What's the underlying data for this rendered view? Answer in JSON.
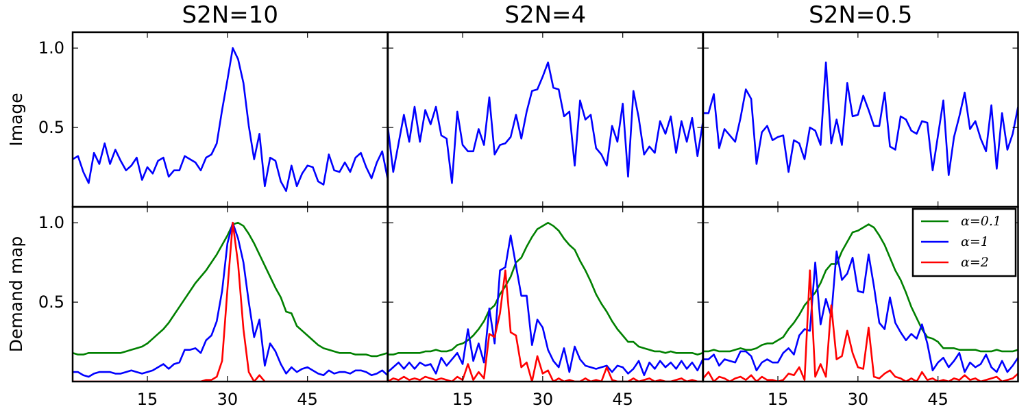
{
  "chart_data": {
    "type": "line",
    "columns": [
      "S2N=10",
      "S2N=4",
      "S2N=0.5"
    ],
    "rows": [
      "Image",
      "Demand map"
    ],
    "x_ticks": [
      15,
      30,
      45
    ],
    "y_ticks": [
      "1.0",
      "0.5"
    ],
    "xlim": [
      1,
      60
    ],
    "ylim": [
      0.0,
      1.1
    ],
    "colors": {
      "green": "#008000",
      "blue": "#0000ff",
      "red": "#ff0000"
    },
    "legend": {
      "location": "upper right of bottom-right panel",
      "entries": [
        {
          "label": "α=0.1",
          "color": "#008000"
        },
        {
          "label": "α=1",
          "color": "#0000ff"
        },
        {
          "label": "α=2",
          "color": "#ff0000"
        }
      ]
    },
    "panels": [
      {
        "column": "S2N=10",
        "row": "Image",
        "series": [
          {
            "color": "#0000ff",
            "y": [
              0.3,
              0.32,
              0.22,
              0.15,
              0.34,
              0.27,
              0.4,
              0.27,
              0.36,
              0.29,
              0.23,
              0.26,
              0.31,
              0.17,
              0.25,
              0.21,
              0.29,
              0.31,
              0.19,
              0.23,
              0.23,
              0.32,
              0.3,
              0.28,
              0.23,
              0.31,
              0.33,
              0.4,
              0.61,
              0.8,
              1.0,
              0.93,
              0.78,
              0.51,
              0.3,
              0.46,
              0.13,
              0.31,
              0.29,
              0.16,
              0.1,
              0.26,
              0.13,
              0.21,
              0.26,
              0.25,
              0.16,
              0.14,
              0.33,
              0.23,
              0.22,
              0.28,
              0.22,
              0.31,
              0.34,
              0.25,
              0.18,
              0.28,
              0.35,
              0.18
            ]
          }
        ]
      },
      {
        "column": "S2N=4",
        "row": "Image",
        "series": [
          {
            "color": "#0000ff",
            "y": [
              0.5,
              0.22,
              0.4,
              0.58,
              0.41,
              0.63,
              0.41,
              0.61,
              0.52,
              0.63,
              0.45,
              0.43,
              0.15,
              0.6,
              0.39,
              0.35,
              0.35,
              0.49,
              0.39,
              0.69,
              0.33,
              0.39,
              0.4,
              0.44,
              0.58,
              0.43,
              0.6,
              0.73,
              0.74,
              0.82,
              0.91,
              0.75,
              0.74,
              0.57,
              0.6,
              0.26,
              0.67,
              0.55,
              0.58,
              0.37,
              0.33,
              0.26,
              0.51,
              0.41,
              0.65,
              0.19,
              0.73,
              0.56,
              0.33,
              0.38,
              0.34,
              0.54,
              0.46,
              0.57,
              0.34,
              0.54,
              0.41,
              0.56,
              0.32,
              0.53
            ]
          }
        ]
      },
      {
        "column": "S2N=0.5",
        "row": "Image",
        "series": [
          {
            "color": "#0000ff",
            "y": [
              0.59,
              0.59,
              0.71,
              0.37,
              0.49,
              0.45,
              0.41,
              0.56,
              0.74,
              0.68,
              0.27,
              0.47,
              0.51,
              0.42,
              0.44,
              0.45,
              0.22,
              0.42,
              0.4,
              0.3,
              0.5,
              0.48,
              0.39,
              0.91,
              0.4,
              0.55,
              0.39,
              0.78,
              0.57,
              0.58,
              0.7,
              0.61,
              0.51,
              0.51,
              0.72,
              0.38,
              0.36,
              0.57,
              0.55,
              0.48,
              0.46,
              0.54,
              0.53,
              0.23,
              0.45,
              0.67,
              0.2,
              0.44,
              0.57,
              0.72,
              0.49,
              0.54,
              0.43,
              0.35,
              0.64,
              0.24,
              0.59,
              0.36,
              0.46,
              0.63
            ]
          }
        ]
      },
      {
        "column": "S2N=10",
        "row": "Demand map",
        "series": [
          {
            "color": "#008000",
            "y": [
              0.18,
              0.17,
              0.17,
              0.18,
              0.18,
              0.18,
              0.18,
              0.18,
              0.18,
              0.18,
              0.19,
              0.2,
              0.21,
              0.22,
              0.24,
              0.27,
              0.3,
              0.33,
              0.37,
              0.42,
              0.47,
              0.52,
              0.57,
              0.62,
              0.66,
              0.7,
              0.75,
              0.8,
              0.86,
              0.92,
              0.99,
              1.0,
              0.98,
              0.93,
              0.87,
              0.8,
              0.73,
              0.66,
              0.59,
              0.53,
              0.44,
              0.43,
              0.35,
              0.32,
              0.29,
              0.26,
              0.23,
              0.21,
              0.2,
              0.19,
              0.18,
              0.18,
              0.18,
              0.17,
              0.17,
              0.17,
              0.16,
              0.16,
              0.17,
              0.18
            ]
          },
          {
            "color": "#0000ff",
            "y": [
              0.06,
              0.06,
              0.04,
              0.03,
              0.05,
              0.06,
              0.06,
              0.06,
              0.05,
              0.05,
              0.06,
              0.07,
              0.06,
              0.05,
              0.06,
              0.07,
              0.09,
              0.11,
              0.08,
              0.11,
              0.12,
              0.2,
              0.2,
              0.21,
              0.18,
              0.26,
              0.29,
              0.38,
              0.57,
              0.87,
              1.0,
              0.9,
              0.75,
              0.5,
              0.28,
              0.39,
              0.1,
              0.24,
              0.19,
              0.11,
              0.05,
              0.09,
              0.06,
              0.08,
              0.09,
              0.07,
              0.05,
              0.04,
              0.07,
              0.05,
              0.06,
              0.06,
              0.05,
              0.07,
              0.07,
              0.06,
              0.04,
              0.05,
              0.07,
              0.04
            ]
          },
          {
            "color": "#ff0000",
            "y": [
              0.0,
              0.0,
              0.0,
              0.0,
              0.0,
              0.0,
              0.0,
              0.0,
              0.0,
              0.0,
              0.0,
              0.0,
              0.0,
              0.0,
              0.0,
              0.0,
              0.0,
              0.0,
              0.0,
              0.0,
              0.0,
              0.0,
              0.0,
              0.0,
              0.0,
              0.01,
              0.01,
              0.03,
              0.13,
              0.58,
              1.0,
              0.74,
              0.33,
              0.06,
              0.0,
              0.04,
              0.0,
              0.0,
              0.0,
              0.0,
              0.0,
              0.0,
              0.0,
              0.0,
              0.0,
              0.0,
              0.0,
              0.0,
              0.0,
              0.0,
              0.0,
              0.0,
              0.0,
              0.0,
              0.0,
              0.0,
              0.0,
              0.0,
              0.0,
              0.0
            ]
          }
        ]
      },
      {
        "column": "S2N=4",
        "row": "Demand map",
        "series": [
          {
            "color": "#008000",
            "y": [
              0.17,
              0.17,
              0.18,
              0.18,
              0.18,
              0.18,
              0.18,
              0.19,
              0.19,
              0.2,
              0.19,
              0.19,
              0.2,
              0.23,
              0.24,
              0.26,
              0.29,
              0.33,
              0.38,
              0.45,
              0.48,
              0.55,
              0.6,
              0.66,
              0.75,
              0.78,
              0.85,
              0.91,
              0.96,
              0.98,
              1.0,
              0.98,
              0.95,
              0.9,
              0.86,
              0.83,
              0.76,
              0.7,
              0.63,
              0.55,
              0.49,
              0.44,
              0.38,
              0.33,
              0.29,
              0.25,
              0.25,
              0.22,
              0.21,
              0.2,
              0.19,
              0.19,
              0.18,
              0.19,
              0.18,
              0.18,
              0.18,
              0.18,
              0.17,
              0.18
            ]
          },
          {
            "color": "#0000ff",
            "y": [
              0.06,
              0.09,
              0.12,
              0.08,
              0.12,
              0.08,
              0.12,
              0.1,
              0.11,
              0.05,
              0.15,
              0.1,
              0.14,
              0.18,
              0.11,
              0.33,
              0.13,
              0.24,
              0.12,
              0.46,
              0.24,
              0.7,
              0.72,
              0.92,
              0.73,
              0.54,
              0.54,
              0.23,
              0.39,
              0.34,
              0.2,
              0.13,
              0.09,
              0.21,
              0.06,
              0.22,
              0.14,
              0.1,
              0.09,
              0.08,
              0.09,
              0.1,
              0.06,
              0.1,
              0.09,
              0.05,
              0.08,
              0.13,
              0.04,
              0.12,
              0.08,
              0.13,
              0.09,
              0.12,
              0.08,
              0.13,
              0.08,
              0.12,
              0.07,
              0.14
            ]
          },
          {
            "color": "#ff0000",
            "y": [
              0.0,
              0.02,
              0.01,
              0.03,
              0.01,
              0.02,
              0.01,
              0.03,
              0.02,
              0.01,
              0.02,
              0.01,
              0.0,
              0.03,
              0.01,
              0.11,
              0.01,
              0.06,
              0.02,
              0.3,
              0.28,
              0.43,
              0.7,
              0.31,
              0.29,
              0.09,
              0.12,
              0.0,
              0.16,
              0.05,
              0.07,
              0.0,
              0.02,
              0.0,
              0.01,
              0.0,
              0.0,
              0.02,
              0.0,
              0.01,
              0.0,
              0.09,
              0.01,
              0.0,
              0.0,
              0.0,
              0.02,
              0.0,
              0.01,
              0.02,
              0.0,
              0.01,
              0.0,
              0.0,
              0.01,
              0.02,
              0.0,
              0.01,
              0.0,
              0.0
            ]
          }
        ]
      },
      {
        "column": "S2N=0.5",
        "row": "Demand map",
        "series": [
          {
            "color": "#008000",
            "y": [
              0.19,
              0.19,
              0.2,
              0.19,
              0.19,
              0.19,
              0.2,
              0.21,
              0.2,
              0.2,
              0.21,
              0.23,
              0.24,
              0.24,
              0.26,
              0.28,
              0.33,
              0.37,
              0.42,
              0.48,
              0.52,
              0.56,
              0.62,
              0.7,
              0.74,
              0.74,
              0.82,
              0.88,
              0.94,
              0.95,
              0.97,
              0.99,
              0.97,
              0.92,
              0.86,
              0.78,
              0.7,
              0.64,
              0.56,
              0.47,
              0.4,
              0.33,
              0.28,
              0.27,
              0.25,
              0.21,
              0.21,
              0.21,
              0.2,
              0.2,
              0.2,
              0.2,
              0.19,
              0.19,
              0.19,
              0.2,
              0.19,
              0.19,
              0.19,
              0.2
            ]
          },
          {
            "color": "#0000ff",
            "y": [
              0.14,
              0.14,
              0.17,
              0.1,
              0.14,
              0.13,
              0.12,
              0.19,
              0.19,
              0.16,
              0.07,
              0.12,
              0.14,
              0.12,
              0.12,
              0.18,
              0.21,
              0.17,
              0.29,
              0.33,
              0.32,
              0.75,
              0.36,
              0.52,
              0.41,
              0.82,
              0.64,
              0.68,
              0.78,
              0.57,
              0.56,
              0.8,
              0.6,
              0.37,
              0.33,
              0.53,
              0.37,
              0.31,
              0.26,
              0.3,
              0.27,
              0.36,
              0.24,
              0.07,
              0.12,
              0.15,
              0.09,
              0.13,
              0.18,
              0.06,
              0.12,
              0.09,
              0.11,
              0.17,
              0.09,
              0.06,
              0.13,
              0.06,
              0.1,
              0.15
            ]
          },
          {
            "color": "#ff0000",
            "y": [
              0.02,
              0.06,
              0.0,
              0.03,
              0.02,
              0.0,
              0.02,
              0.03,
              0.01,
              0.04,
              0.0,
              0.03,
              0.01,
              0.01,
              0.0,
              0.01,
              0.05,
              0.04,
              0.09,
              0.01,
              0.7,
              0.03,
              0.11,
              0.03,
              0.48,
              0.14,
              0.16,
              0.32,
              0.18,
              0.09,
              0.08,
              0.34,
              0.03,
              0.02,
              0.05,
              0.07,
              0.03,
              0.02,
              0.0,
              0.02,
              0.0,
              0.06,
              0.01,
              0.02,
              0.0,
              0.01,
              0.0,
              0.02,
              0.01,
              0.04,
              0.01,
              0.02,
              0.0,
              0.01,
              0.02,
              0.03,
              0.0,
              0.01,
              0.02,
              0.05
            ]
          }
        ]
      }
    ]
  }
}
